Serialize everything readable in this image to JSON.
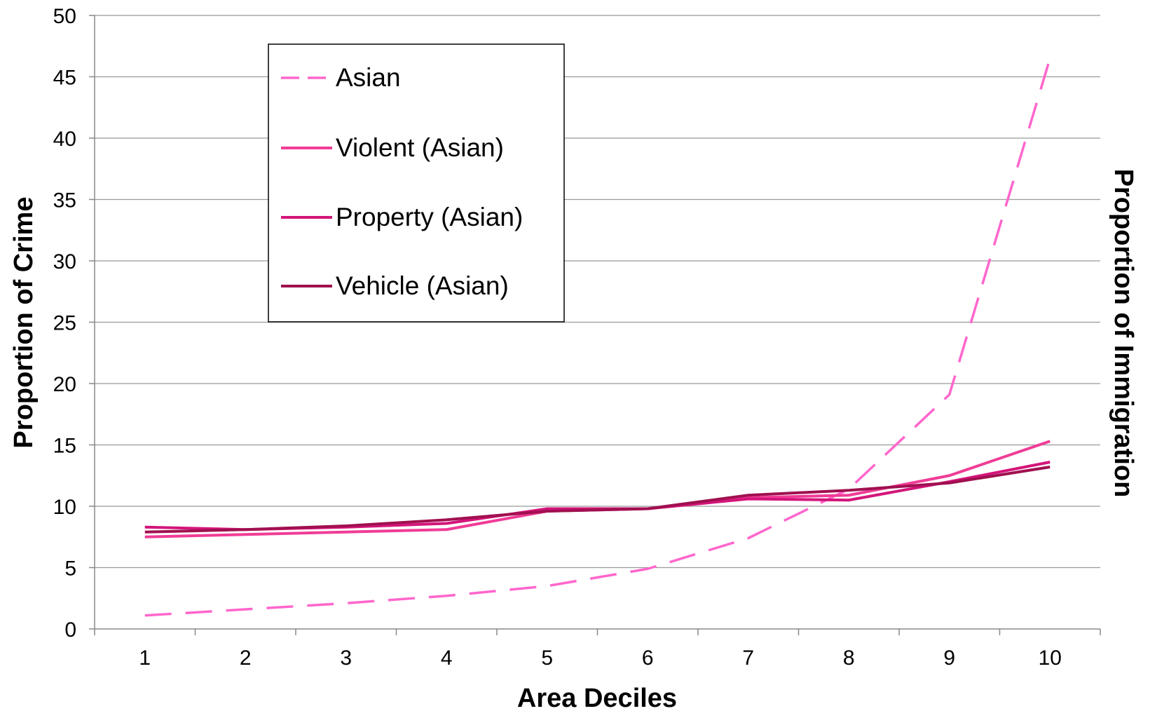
{
  "chart_data": {
    "type": "line",
    "title": "",
    "xlabel": "Area Deciles",
    "ylabel": "Proportion of Crime",
    "y2label": "Proportion of Immigration",
    "categories": [
      "1",
      "2",
      "3",
      "4",
      "5",
      "6",
      "7",
      "8",
      "9",
      "10"
    ],
    "ylim": [
      0,
      50
    ],
    "yticks": [
      "0",
      "5",
      "10",
      "15",
      "20",
      "25",
      "30",
      "35",
      "40",
      "45",
      "50"
    ],
    "grid": true,
    "legend_position": "top-left",
    "series": [
      {
        "name": "Asian",
        "values": [
          1.1,
          1.6,
          2.1,
          2.7,
          3.5,
          4.9,
          7.4,
          11.4,
          19.1,
          46.5
        ],
        "color": "#ff66cc",
        "dashed": true
      },
      {
        "name": "Violent (Asian)",
        "values": [
          7.5,
          7.7,
          7.9,
          8.1,
          9.6,
          9.8,
          10.7,
          10.9,
          12.5,
          15.3
        ],
        "color": "#f03c96",
        "dashed": false
      },
      {
        "name": "Property (Asian)",
        "values": [
          8.3,
          8.1,
          8.3,
          8.6,
          9.8,
          9.8,
          10.6,
          10.5,
          12.0,
          13.6
        ],
        "color": "#d4157a",
        "dashed": false
      },
      {
        "name": "Vehicle (Asian)",
        "values": [
          7.9,
          8.1,
          8.4,
          8.9,
          9.6,
          9.8,
          10.9,
          11.3,
          11.9,
          13.2
        ],
        "color": "#a01050",
        "dashed": false
      }
    ]
  }
}
